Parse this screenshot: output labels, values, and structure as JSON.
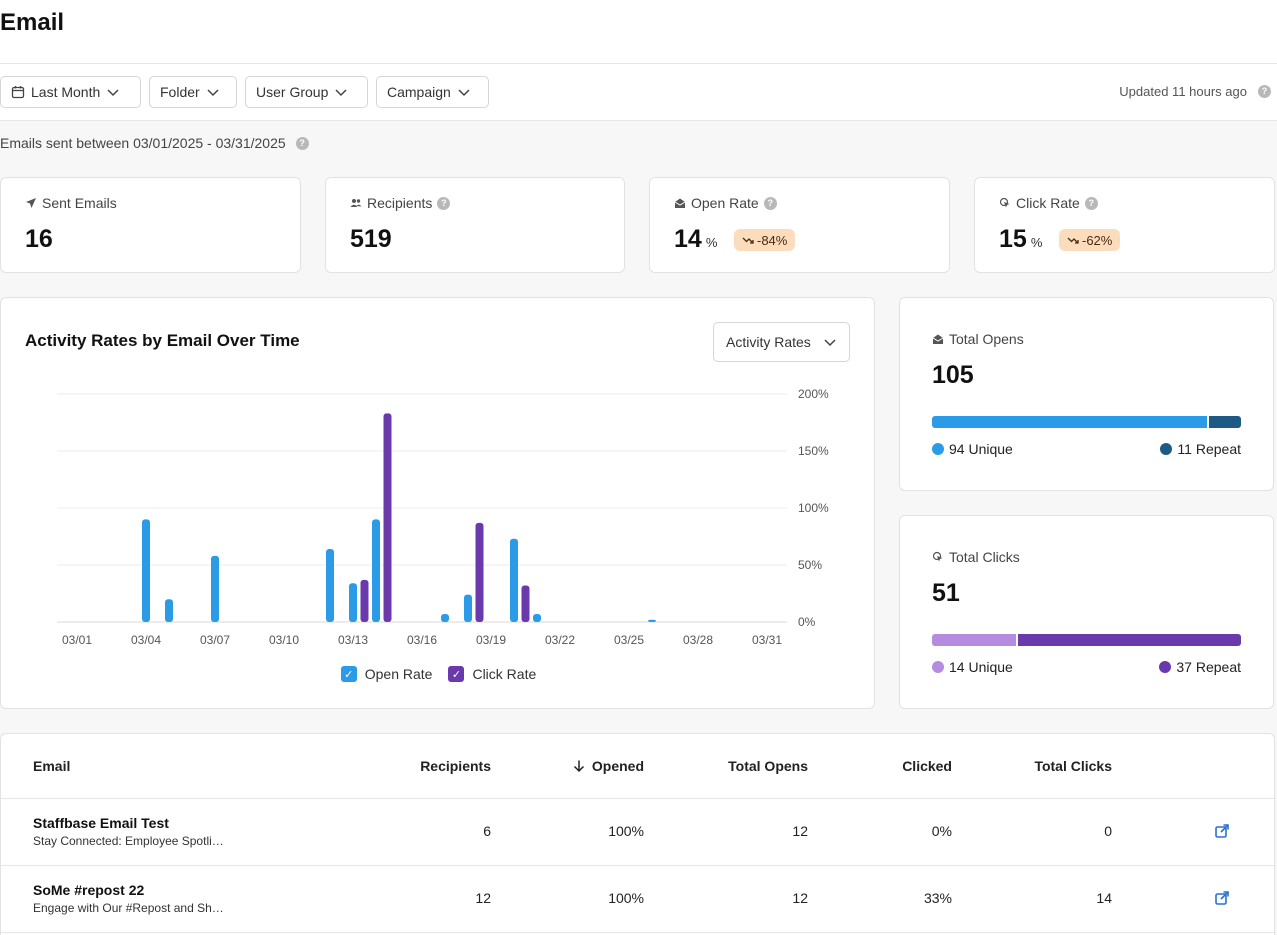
{
  "page": {
    "title": "Email"
  },
  "filters": {
    "date": "Last Month",
    "folder": "Folder",
    "user_group": "User Group",
    "campaign": "Campaign",
    "updated": "Updated 11 hours ago"
  },
  "summary": {
    "sent_between": "Emails sent between 03/01/2025 - 03/31/2025"
  },
  "kpis": {
    "sent": {
      "label": "Sent Emails",
      "value": "16"
    },
    "recipients": {
      "label": "Recipients",
      "value": "519"
    },
    "open_rate": {
      "label": "Open Rate",
      "value": "14",
      "unit": "%",
      "trend": "-84%"
    },
    "click_rate": {
      "label": "Click Rate",
      "value": "15",
      "unit": "%",
      "trend": "-62%"
    }
  },
  "chart": {
    "title": "Activity Rates by Email Over Time",
    "selector": "Activity Rates"
  },
  "chart_data": {
    "type": "bar",
    "title": "Activity Rates by Email Over Time",
    "x_tick_labels": [
      "03/01",
      "03/04",
      "03/07",
      "03/10",
      "03/13",
      "03/16",
      "03/19",
      "03/22",
      "03/25",
      "03/28",
      "03/31"
    ],
    "y_tick_labels": [
      "0%",
      "50%",
      "100%",
      "150%",
      "200%"
    ],
    "ylim": [
      0,
      200
    ],
    "series": [
      {
        "name": "Open Rate",
        "color": "#2b9be8",
        "points": [
          {
            "day": 4,
            "value": 90
          },
          {
            "day": 5,
            "value": 20
          },
          {
            "day": 7,
            "value": 58
          },
          {
            "day": 12,
            "value": 64
          },
          {
            "day": 13,
            "value": 34
          },
          {
            "day": 14,
            "value": 90
          },
          {
            "day": 17,
            "value": 7
          },
          {
            "day": 18,
            "value": 24
          },
          {
            "day": 20,
            "value": 73
          },
          {
            "day": 21,
            "value": 7
          },
          {
            "day": 26,
            "value": 2
          }
        ]
      },
      {
        "name": "Click Rate",
        "color": "#6a3aad",
        "points": [
          {
            "day": 13.5,
            "value": 37
          },
          {
            "day": 14.5,
            "value": 183
          },
          {
            "day": 18.5,
            "value": 87
          },
          {
            "day": 20.5,
            "value": 32
          }
        ]
      }
    ]
  },
  "legend": {
    "open": "Open Rate",
    "click": "Click Rate"
  },
  "totals": {
    "opens": {
      "label": "Total Opens",
      "value": "105",
      "unique": 94,
      "repeat": 11,
      "unique_label": "94 Unique",
      "repeat_label": "11 Repeat",
      "unique_color": "#2b9be8",
      "repeat_color": "#1d5a85"
    },
    "clicks": {
      "label": "Total Clicks",
      "value": "51",
      "unique": 14,
      "repeat": 37,
      "unique_label": "14 Unique",
      "repeat_label": "37 Repeat",
      "unique_color": "#b58be0",
      "repeat_color": "#6a3aad"
    }
  },
  "table": {
    "headers": {
      "email": "Email",
      "recipients": "Recipients",
      "opened": "Opened",
      "total_opens": "Total Opens",
      "clicked": "Clicked",
      "total_clicks": "Total Clicks"
    },
    "rows": [
      {
        "name": "Staffbase Email Test",
        "subject": "Stay Connected: Employee Spotli…",
        "recipients": "6",
        "opened": "100%",
        "total_opens": "12",
        "clicked": "0%",
        "total_clicks": "0"
      },
      {
        "name": "SoMe #repost 22",
        "subject": "Engage with Our #Repost and Sh…",
        "recipients": "12",
        "opened": "100%",
        "total_opens": "12",
        "clicked": "33%",
        "total_clicks": "14"
      }
    ]
  }
}
